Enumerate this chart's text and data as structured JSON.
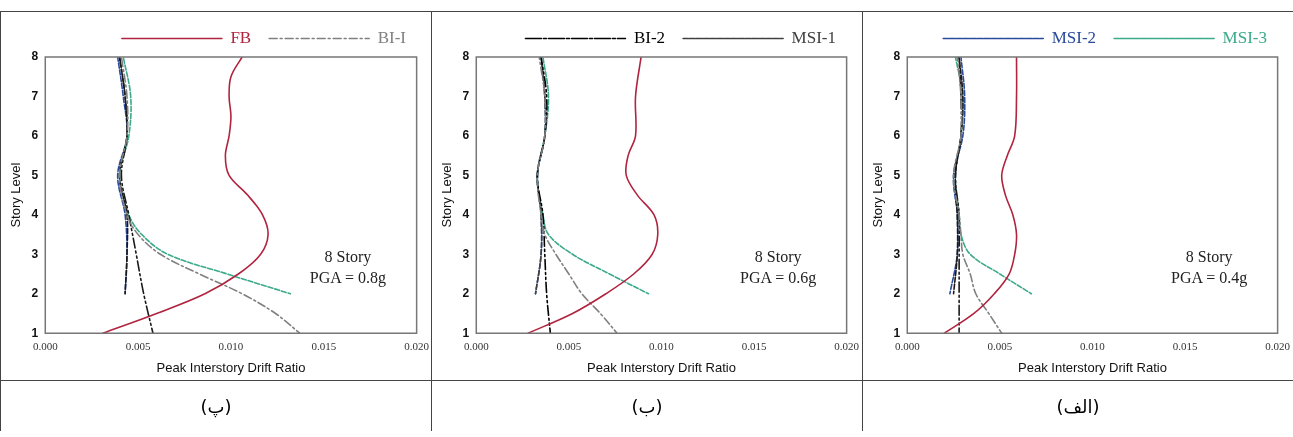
{
  "chart_data": [
    {
      "type": "line",
      "title": "(پ)",
      "xlabel": "Peak Interstory Drift Ratio",
      "ylabel": "Story Level",
      "legend": "top",
      "grid": false,
      "marker": "none",
      "xlim": [
        0,
        0.02
      ],
      "xticks": [
        {
          "value": 0,
          "label": "0.000"
        },
        {
          "value": 0.005,
          "label": "0.005"
        },
        {
          "value": 0.01,
          "label": "0.010"
        },
        {
          "value": 0.015,
          "label": "0.015"
        },
        {
          "value": 0.02,
          "label": "0.020"
        }
      ],
      "ylim": [
        1,
        8
      ],
      "yticks": [
        1,
        2,
        3,
        4,
        5,
        6,
        7,
        8
      ],
      "annotations": [
        "8 Story",
        "PGA = 0.8g"
      ],
      "series": [
        {
          "name": "FB",
          "color": "#b0243f",
          "line_style": "solid",
          "x": [
            0.0106,
            0.01,
            0.0099,
            0.01,
            0.0099,
            0.0097,
            0.0099,
            0.0109,
            0.0117,
            0.012,
            0.0116,
            0.0104,
            0.0086,
            0.006,
            0.0031
          ],
          "values": [
            8,
            7.5,
            7,
            6.5,
            6,
            5.5,
            5,
            4.5,
            4,
            3.5,
            3,
            2.5,
            2,
            1.5,
            1
          ]
        },
        {
          "name": "BI-I",
          "color": "#808080",
          "line_style": "dashdot",
          "x": [
            0.0041,
            0.0044,
            0.0044,
            0.004,
            0.0044,
            0.005,
            0.0062,
            0.0083,
            0.0106,
            0.0124,
            0.0137
          ],
          "values": [
            8,
            7,
            6,
            5,
            4,
            3.5,
            3,
            2.5,
            2,
            1.5,
            1
          ]
        },
        {
          "color": "#1a1a1a",
          "line_style": "dashdotdot",
          "x": [
            0.004,
            0.0043,
            0.0044,
            0.0041,
            0.0045,
            0.0049,
            0.0053,
            0.0058
          ],
          "values": [
            8,
            7,
            6,
            5,
            4,
            3,
            2,
            1
          ]
        },
        {
          "color": "#1a1a1a",
          "line_style": "dashed",
          "x": [
            0.004,
            0.0043,
            0.0044,
            0.004,
            0.0044,
            0.0044,
            0.0043
          ],
          "values": [
            8,
            7,
            6,
            5,
            4,
            3,
            2
          ]
        },
        {
          "color": "#2a4a9a",
          "line_style": "dashed",
          "x": [
            0.0039,
            0.0042,
            0.0044,
            0.0039,
            0.0043,
            0.0044,
            0.0043
          ],
          "values": [
            8,
            7,
            6,
            5,
            4,
            3,
            2
          ]
        },
        {
          "color": "#3aaa8a",
          "line_style": "dashed",
          "x": [
            0.0042,
            0.0046,
            0.0045,
            0.004,
            0.0045,
            0.0052,
            0.0066,
            0.0098,
            0.0132
          ],
          "values": [
            8,
            7,
            6,
            5,
            4,
            3.5,
            3,
            2.5,
            2
          ]
        }
      ]
    },
    {
      "type": "line",
      "title": "(ب)",
      "xlabel": "Peak Interstory Drift Ratio",
      "ylabel": "Story Level",
      "legend": "top",
      "grid": false,
      "marker": "none",
      "xlim": [
        0,
        0.02
      ],
      "xticks": [
        {
          "value": 0,
          "label": "0.000"
        },
        {
          "value": 0.005,
          "label": "0.005"
        },
        {
          "value": 0.01,
          "label": "0.010"
        },
        {
          "value": 0.015,
          "label": "0.015"
        },
        {
          "value": 0.02,
          "label": "0.020"
        }
      ],
      "ylim": [
        1,
        8
      ],
      "yticks": [
        1,
        2,
        3,
        4,
        5,
        6,
        7,
        8
      ],
      "annotations": [
        "8 Story",
        "PGA = 0.6g"
      ],
      "series": [
        {
          "color": "#b0243f",
          "line_style": "solid",
          "x": [
            0.0089,
            0.0086,
            0.0086,
            0.0082,
            0.0081,
            0.0087,
            0.0096,
            0.0098,
            0.0095,
            0.0085,
            0.007,
            0.0052,
            0.0028
          ],
          "values": [
            8,
            7,
            6,
            5.5,
            5,
            4.5,
            4,
            3.5,
            3,
            2.5,
            2,
            1.5,
            1
          ]
        },
        {
          "color": "#808080",
          "line_style": "dashdot",
          "x": [
            0.0034,
            0.0037,
            0.0037,
            0.0033,
            0.0035,
            0.0037,
            0.0043,
            0.005,
            0.0057,
            0.0067,
            0.0076
          ],
          "values": [
            8,
            7,
            6,
            5,
            4,
            3.5,
            3,
            2.5,
            2,
            1.5,
            1
          ]
        },
        {
          "name": "BI-2",
          "color": "#000000",
          "line_style": "dashdotdot",
          "x": [
            0.0035,
            0.0038,
            0.0037,
            0.0033,
            0.0036,
            0.0037,
            0.0038,
            0.004
          ],
          "values": [
            8,
            7,
            6,
            5,
            4,
            3,
            2,
            1
          ]
        },
        {
          "name": "MSI-1",
          "color": "#404040",
          "line_style": "dashed",
          "x": [
            0.0035,
            0.0037,
            0.0037,
            0.0033,
            0.0035,
            0.0035,
            0.0032
          ],
          "values": [
            8,
            7,
            6,
            5,
            4,
            3,
            2
          ]
        },
        {
          "color": "#2a4a9a",
          "line_style": "dashed",
          "x": [
            0.0035,
            0.0037,
            0.0037,
            0.0033,
            0.0035,
            0.0035,
            0.0032
          ],
          "values": [
            8,
            7,
            6,
            5,
            4,
            3,
            2
          ]
        },
        {
          "color": "#3aaa8a",
          "line_style": "dashed",
          "x": [
            0.0036,
            0.0039,
            0.0037,
            0.0033,
            0.0036,
            0.0039,
            0.0052,
            0.0072,
            0.0093
          ],
          "values": [
            8,
            7,
            6,
            5,
            4,
            3.5,
            3,
            2.5,
            2
          ]
        }
      ]
    },
    {
      "type": "line",
      "title": "(الف)",
      "xlabel": "Peak Interstory Drift Ratio",
      "ylabel": "Story Level",
      "legend": "top",
      "grid": false,
      "marker": "none",
      "xlim": [
        0,
        0.02
      ],
      "xticks": [
        {
          "value": 0,
          "label": "0.000"
        },
        {
          "value": 0.005,
          "label": "0.005"
        },
        {
          "value": 0.01,
          "label": "0.010"
        },
        {
          "value": 0.015,
          "label": "0.015"
        },
        {
          "value": 0.02,
          "label": "0.020"
        }
      ],
      "ylim": [
        1,
        8
      ],
      "yticks": [
        1,
        2,
        3,
        4,
        5,
        6,
        7,
        8
      ],
      "annotations": [
        "8 Story",
        "PGA = 0.4g"
      ],
      "series": [
        {
          "color": "#b0243f",
          "line_style": "solid",
          "x": [
            0.0059,
            0.0059,
            0.0058,
            0.0054,
            0.0051,
            0.0053,
            0.0057,
            0.0059,
            0.0058,
            0.0055,
            0.0047,
            0.0036,
            0.002
          ],
          "values": [
            8,
            7,
            6,
            5.5,
            5,
            4.5,
            4,
            3.5,
            3,
            2.5,
            2,
            1.5,
            1
          ]
        },
        {
          "color": "#808080",
          "line_style": "dashdot",
          "x": [
            0.0027,
            0.0029,
            0.0029,
            0.0025,
            0.0028,
            0.0029,
            0.003,
            0.0034,
            0.0037,
            0.0044,
            0.0051
          ],
          "values": [
            8,
            7,
            6,
            5,
            4,
            3.5,
            3,
            2.5,
            2,
            1.5,
            1
          ]
        },
        {
          "color": "#1a1a1a",
          "line_style": "dashdotdot",
          "x": [
            0.0028,
            0.0029,
            0.0029,
            0.0026,
            0.0028,
            0.0028,
            0.0028,
            0.0028
          ],
          "values": [
            8,
            7,
            6,
            5,
            4,
            3,
            2,
            1
          ]
        },
        {
          "color": "#1a1a1a",
          "line_style": "dashed",
          "x": [
            0.0028,
            0.003,
            0.0029,
            0.0026,
            0.0027,
            0.0027,
            0.0025
          ],
          "values": [
            8,
            7,
            6,
            5,
            4,
            3,
            2
          ]
        },
        {
          "name": "MSI-2",
          "color": "#2a4a9a",
          "line_style": "dashed",
          "x": [
            0.0029,
            0.0031,
            0.003,
            0.0025,
            0.0027,
            0.0027,
            0.0023
          ],
          "values": [
            8,
            7,
            6,
            5,
            4,
            3,
            2
          ]
        },
        {
          "name": "MSI-3",
          "color": "#3aaa8a",
          "line_style": "dashed",
          "x": [
            0.0026,
            0.003,
            0.0029,
            0.0026,
            0.0028,
            0.0029,
            0.0034,
            0.005,
            0.0067
          ],
          "values": [
            8,
            7,
            6,
            5,
            4,
            3.5,
            3,
            2.5,
            2
          ]
        }
      ]
    }
  ]
}
